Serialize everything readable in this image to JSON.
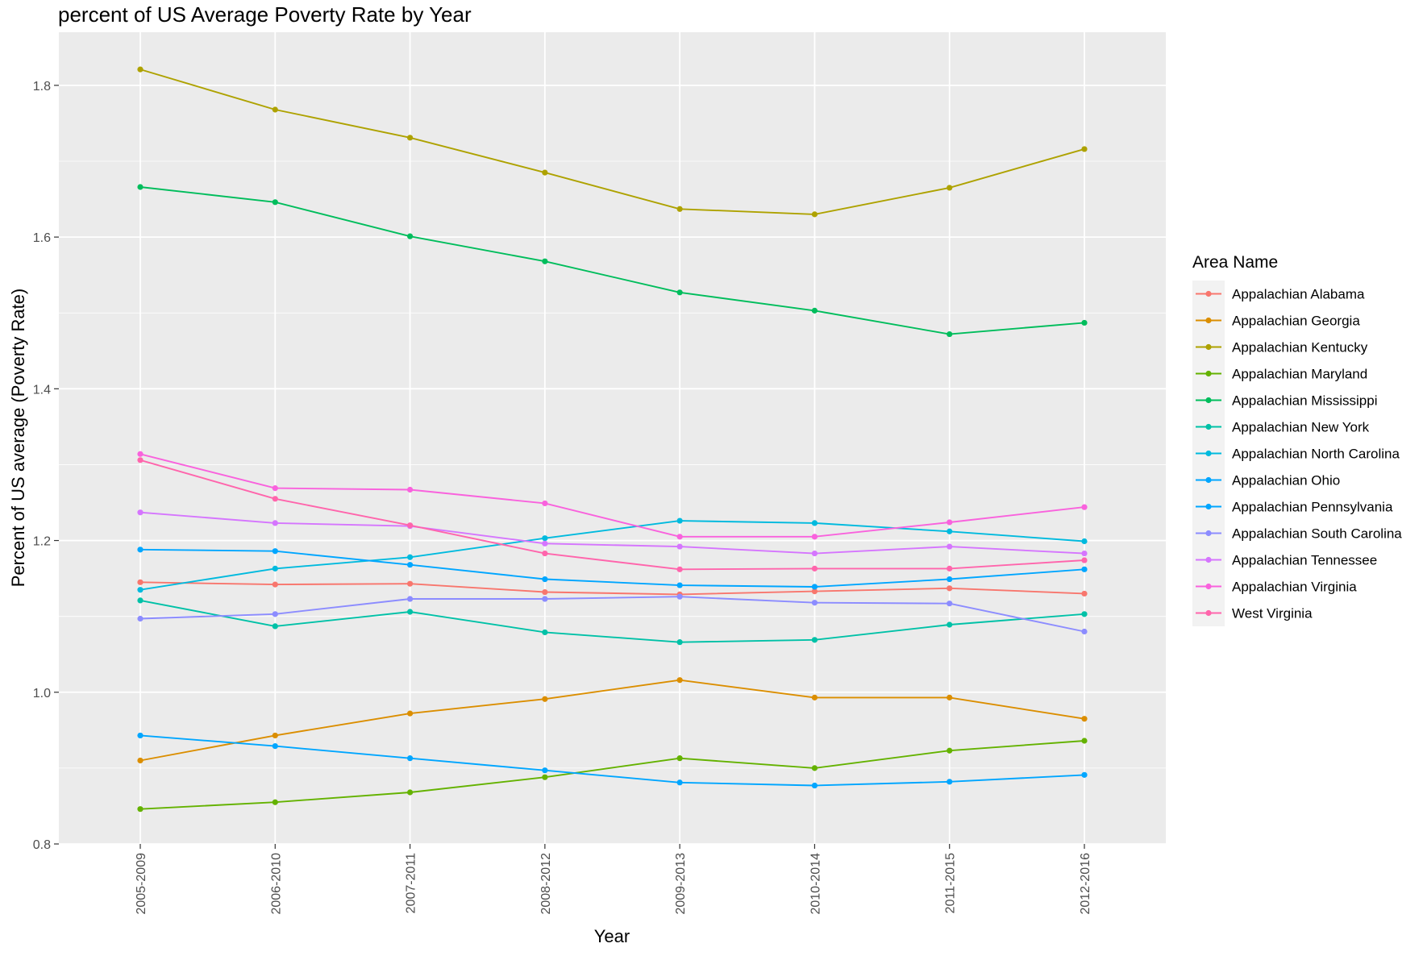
{
  "chart_data": {
    "type": "line",
    "title": "percent of US Average Poverty Rate by Year",
    "xlabel": "Year",
    "ylabel": "Percent of US average (Poverty Rate)",
    "categories": [
      "2005-2009",
      "2006-2010",
      "2007-2011",
      "2008-2012",
      "2009-2013",
      "2010-2014",
      "2011-2015",
      "2012-2016"
    ],
    "ylim": [
      0.8,
      1.87
    ],
    "yticks": [
      "0.8",
      "1.0",
      "1.2",
      "1.4",
      "1.6",
      "1.8"
    ],
    "grid": true,
    "legend_title": "Area Name",
    "legend_position": "right",
    "series": [
      {
        "name": "Appalachian Alabama",
        "color": "#F8766D",
        "values": [
          1.145,
          1.142,
          1.143,
          1.132,
          1.129,
          1.133,
          1.137,
          1.13
        ]
      },
      {
        "name": "Appalachian Georgia",
        "color": "#DB8E00",
        "values": [
          0.91,
          0.943,
          0.972,
          0.991,
          1.016,
          0.993,
          0.993,
          0.965
        ]
      },
      {
        "name": "Appalachian Kentucky",
        "color": "#AEA200",
        "values": [
          1.821,
          1.768,
          1.731,
          1.685,
          1.637,
          1.63,
          1.665,
          1.716
        ]
      },
      {
        "name": "Appalachian Maryland",
        "color": "#64B200",
        "values": [
          0.846,
          0.855,
          0.868,
          0.888,
          0.913,
          0.9,
          0.923,
          0.936
        ]
      },
      {
        "name": "Appalachian Mississippi",
        "color": "#00BD5C",
        "values": [
          1.666,
          1.646,
          1.601,
          1.568,
          1.527,
          1.503,
          1.472,
          1.487
        ]
      },
      {
        "name": "Appalachian New York",
        "color": "#00C1A7",
        "values": [
          1.121,
          1.087,
          1.106,
          1.079,
          1.066,
          1.069,
          1.089,
          1.103
        ]
      },
      {
        "name": "Appalachian North Carolina",
        "color": "#00BADE",
        "values": [
          1.135,
          1.163,
          1.178,
          1.203,
          1.226,
          1.223,
          1.212,
          1.199
        ]
      },
      {
        "name": "Appalachian Ohio",
        "color": "#00A6FF",
        "values": [
          1.188,
          1.186,
          1.168,
          1.149,
          1.141,
          1.139,
          1.149,
          1.162
        ]
      },
      {
        "name": "Appalachian Pennsylvania",
        "color": "#00A6FF",
        "values": [
          0.943,
          0.929,
          0.913,
          0.897,
          0.881,
          0.877,
          0.882,
          0.891
        ]
      },
      {
        "name": "Appalachian South Carolina",
        "color": "#8C8CFF",
        "values": [
          1.097,
          1.103,
          1.123,
          1.123,
          1.126,
          1.118,
          1.117,
          1.08
        ]
      },
      {
        "name": "Appalachian Tennessee",
        "color": "#D575FE",
        "values": [
          1.237,
          1.223,
          1.219,
          1.196,
          1.192,
          1.183,
          1.192,
          1.183
        ]
      },
      {
        "name": "Appalachian Virginia",
        "color": "#F962DD",
        "values": [
          1.314,
          1.269,
          1.267,
          1.249,
          1.205,
          1.205,
          1.224,
          1.244
        ]
      },
      {
        "name": "West Virginia",
        "color": "#FF65AC",
        "values": [
          1.306,
          1.255,
          1.22,
          1.183,
          1.162,
          1.163,
          1.163,
          1.174
        ]
      }
    ]
  }
}
